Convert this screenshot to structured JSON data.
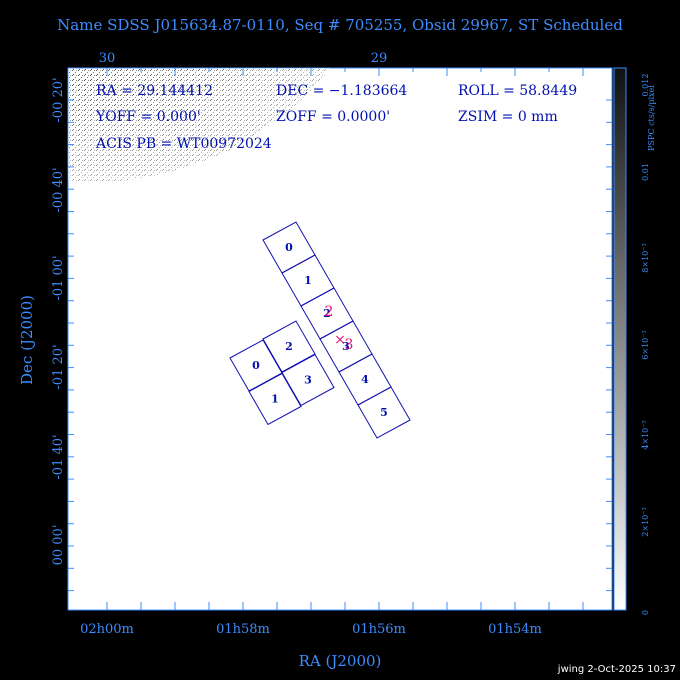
{
  "title": "Name SDSS J015634.87-0110, Seq # 705255, Obsid 29967, ST Scheduled",
  "top_ticks": [
    "30",
    "29"
  ],
  "left_ticks": [
    "-00 20'",
    "-00 40'",
    "-01 00'",
    "-01 20'",
    "-01 40'",
    "00 00'"
  ],
  "bottom_ticks": [
    "02h00m",
    "01h58m",
    "01h56m",
    "01h54m"
  ],
  "x_label": "RA (J2000)",
  "y_label": "Dec (J2000)",
  "info": [
    "RA = 29.144412",
    "DEC = −1.183664",
    "ROLL = 58.8449",
    "YOFF =  0.000'",
    "ZOFF =  0.0000'",
    "ZSIM = 0 mm",
    "ACIS PB = WT00972024"
  ],
  "acis_s_chips": [
    "0",
    "1",
    "2",
    "3",
    "4",
    "5"
  ],
  "acis_i_chips": [
    "0",
    "2",
    "1",
    "3"
  ],
  "highlight_labels": [
    "2",
    "3"
  ],
  "colorbar_title": "PSPC cts/s/pixel",
  "colorbar_ticks": [
    "0.012",
    "0.01",
    "8×10⁻³",
    "6×10⁻³",
    "4×10⁻³",
    "2×10⁻³",
    "0"
  ],
  "footer": "jwing  2-Oct-2025 10:37"
}
